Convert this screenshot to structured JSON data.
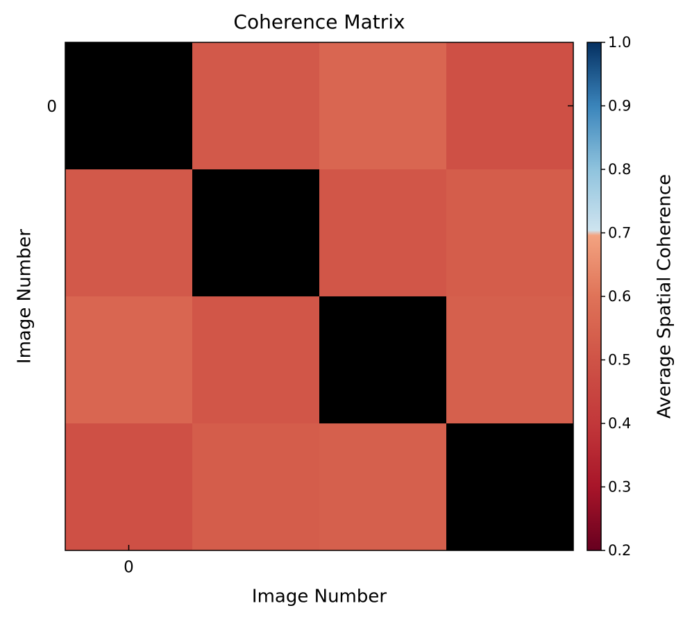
{
  "chart_data": {
    "type": "heatmap",
    "title": "Coherence Matrix",
    "x_label": "Image Number",
    "y_label": "Image Number",
    "values": [
      [
        null,
        0.52,
        0.56,
        0.49
      ],
      [
        0.52,
        null,
        0.51,
        0.53
      ],
      [
        0.56,
        0.51,
        null,
        0.54
      ],
      [
        0.49,
        0.53,
        0.54,
        null
      ]
    ],
    "xlim": [
      -0.5,
      3.5
    ],
    "ylim": [
      3.5,
      -0.5
    ],
    "xticks": [
      0
    ],
    "yticks": [
      0
    ],
    "colormap": "RdBu",
    "nan_color": "#000000",
    "colorbar_label": "Average Spatial Coherence",
    "clim": [
      0.2,
      1.0
    ],
    "cticks": [
      0.2,
      0.3,
      0.4,
      0.5,
      0.6,
      0.7,
      0.8,
      0.9,
      {
        "value": 1.0,
        "label": "1.0"
      }
    ]
  }
}
